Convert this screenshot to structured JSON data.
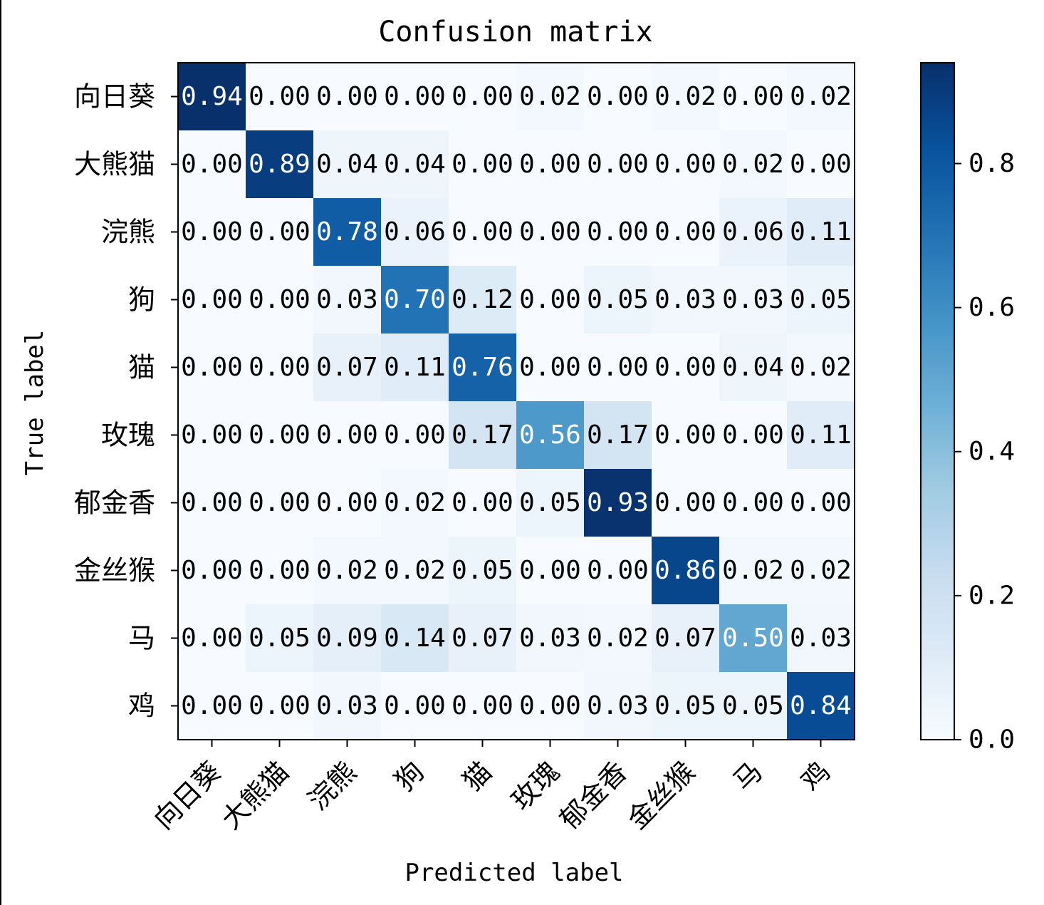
{
  "chart_data": {
    "type": "heatmap",
    "title": "Confusion matrix",
    "xlabel": "Predicted label",
    "ylabel": "True label",
    "categories": [
      "向日葵",
      "大熊猫",
      "浣熊",
      "狗",
      "猫",
      "玫瑰",
      "郁金香",
      "金丝猴",
      "马",
      "鸡"
    ],
    "matrix": [
      [
        0.94,
        0.0,
        0.0,
        0.0,
        0.0,
        0.02,
        0.0,
        0.02,
        0.0,
        0.02
      ],
      [
        0.0,
        0.89,
        0.04,
        0.04,
        0.0,
        0.0,
        0.0,
        0.0,
        0.02,
        0.0
      ],
      [
        0.0,
        0.0,
        0.78,
        0.06,
        0.0,
        0.0,
        0.0,
        0.0,
        0.06,
        0.11
      ],
      [
        0.0,
        0.0,
        0.03,
        0.7,
        0.12,
        0.0,
        0.05,
        0.03,
        0.03,
        0.05
      ],
      [
        0.0,
        0.0,
        0.07,
        0.11,
        0.76,
        0.0,
        0.0,
        0.0,
        0.04,
        0.02
      ],
      [
        0.0,
        0.0,
        0.0,
        0.0,
        0.17,
        0.56,
        0.17,
        0.0,
        0.0,
        0.11
      ],
      [
        0.0,
        0.0,
        0.0,
        0.02,
        0.0,
        0.05,
        0.93,
        0.0,
        0.0,
        0.0
      ],
      [
        0.0,
        0.0,
        0.02,
        0.02,
        0.05,
        0.0,
        0.0,
        0.86,
        0.02,
        0.02
      ],
      [
        0.0,
        0.05,
        0.09,
        0.14,
        0.07,
        0.03,
        0.02,
        0.07,
        0.5,
        0.03
      ],
      [
        0.0,
        0.0,
        0.03,
        0.0,
        0.0,
        0.0,
        0.03,
        0.05,
        0.05,
        0.84
      ]
    ],
    "colormap": "Blues",
    "color_range": [
      0.0,
      0.94
    ],
    "colorbar_ticks": [
      "0.0",
      "0.2",
      "0.4",
      "0.6",
      "0.8"
    ],
    "colorbar_tick_values": [
      0.0,
      0.2,
      0.4,
      0.6,
      0.8
    ],
    "text_color_threshold": 0.47,
    "grid": false
  }
}
